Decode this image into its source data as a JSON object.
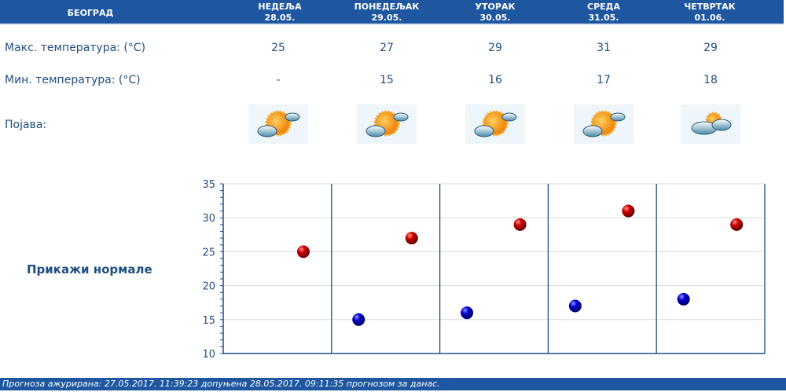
{
  "header": {
    "city": "БЕОГРАД",
    "days": [
      {
        "name": "НЕДЕЉА",
        "date": "28.05."
      },
      {
        "name": "ПОНЕДЕЉАК",
        "date": "29.05."
      },
      {
        "name": "УТОРАК",
        "date": "30.05."
      },
      {
        "name": "СРЕДА",
        "date": "31.05."
      },
      {
        "name": "ЧЕТВРТАК",
        "date": "01.06."
      }
    ]
  },
  "rows": {
    "max_label": "Макс. температура: (°C)",
    "min_label": "Мин. температура: (°C)",
    "phenomenon_label": "Појава:"
  },
  "max": [
    "25",
    "27",
    "29",
    "31",
    "29"
  ],
  "min": [
    "-",
    "15",
    "16",
    "17",
    "18"
  ],
  "icons": [
    "partly-cloudy-sun-icon",
    "partly-cloudy-sun-icon",
    "partly-cloudy-sun-icon",
    "partly-cloudy-sun-icon",
    "cloudy-sun-icon"
  ],
  "normals_link": "Прикажи нормале",
  "chart_data": {
    "type": "scatter",
    "categories": [
      "28.05.",
      "29.05.",
      "30.05.",
      "31.05.",
      "01.06."
    ],
    "series": [
      {
        "values": [
          25,
          27,
          29,
          31,
          29
        ],
        "color": "#cc0000"
      },
      {
        "values": [
          null,
          15,
          16,
          17,
          18
        ],
        "color": "#0000cc"
      }
    ],
    "ylim": [
      10,
      35
    ],
    "yticks": [
      "10",
      "15",
      "20",
      "25",
      "30",
      "35"
    ],
    "grid": true
  },
  "footer": "Прогноза ажурирана:  27.05.2017. 11:39:23 допуњена 28.05.2017. 09:11:35 прогнозом за данас."
}
